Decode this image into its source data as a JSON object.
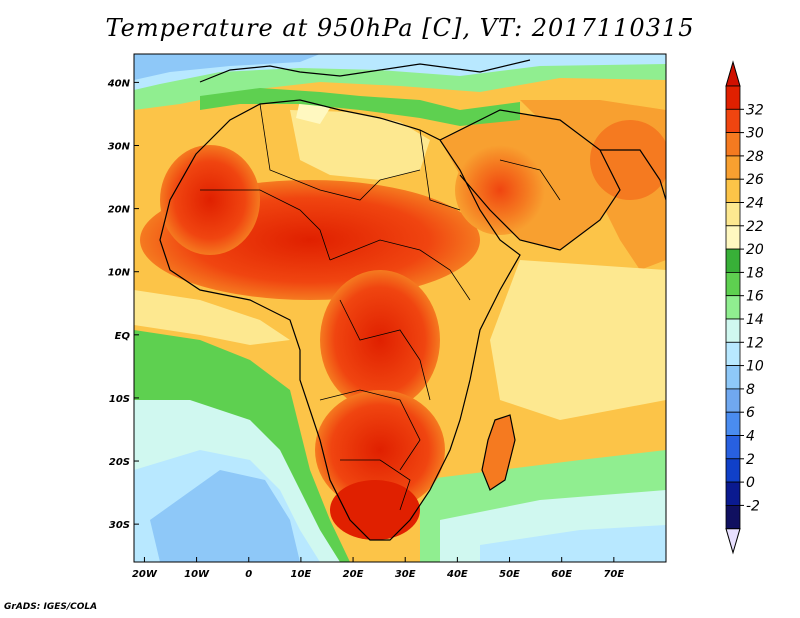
{
  "title": "Temperature at 950hPa [C], VT: 2017110315",
  "credit": "GrADS: IGES/COLA",
  "lat_ticks": [
    {
      "value": 40,
      "label": "40N"
    },
    {
      "value": 30,
      "label": "30N"
    },
    {
      "value": 20,
      "label": "20N"
    },
    {
      "value": 10,
      "label": "10N"
    },
    {
      "value": 0,
      "label": "EQ"
    },
    {
      "value": -10,
      "label": "10S"
    },
    {
      "value": -20,
      "label": "20S"
    },
    {
      "value": -30,
      "label": "30S"
    }
  ],
  "lon_ticks": [
    {
      "value": -20,
      "label": "20W"
    },
    {
      "value": -10,
      "label": "10W"
    },
    {
      "value": 0,
      "label": "0"
    },
    {
      "value": 10,
      "label": "10E"
    },
    {
      "value": 20,
      "label": "20E"
    },
    {
      "value": 30,
      "label": "30E"
    },
    {
      "value": 40,
      "label": "40E"
    },
    {
      "value": 50,
      "label": "50E"
    },
    {
      "value": 60,
      "label": "60E"
    },
    {
      "value": 70,
      "label": "70E"
    }
  ],
  "colorbar": {
    "labels": [
      "32",
      "30",
      "28",
      "26",
      "24",
      "22",
      "20",
      "18",
      "16",
      "14",
      "12",
      "10",
      "8",
      "6",
      "4",
      "2",
      "0",
      "-2"
    ],
    "colors": [
      "#e02000",
      "#f04510",
      "#f57a20",
      "#f8a030",
      "#fcc448",
      "#fde890",
      "#fff8c0",
      "#38b038",
      "#5ed050",
      "#90ee90",
      "#d0f8f0",
      "#b8e8ff",
      "#8ec8f8",
      "#70a8f0",
      "#4a8cf0",
      "#2860e0",
      "#1040c8",
      "#0a1a90",
      "#101060"
    ],
    "top_arrow_color": "#d01000",
    "bottom_arrow_color": "#e8e0ff"
  }
}
